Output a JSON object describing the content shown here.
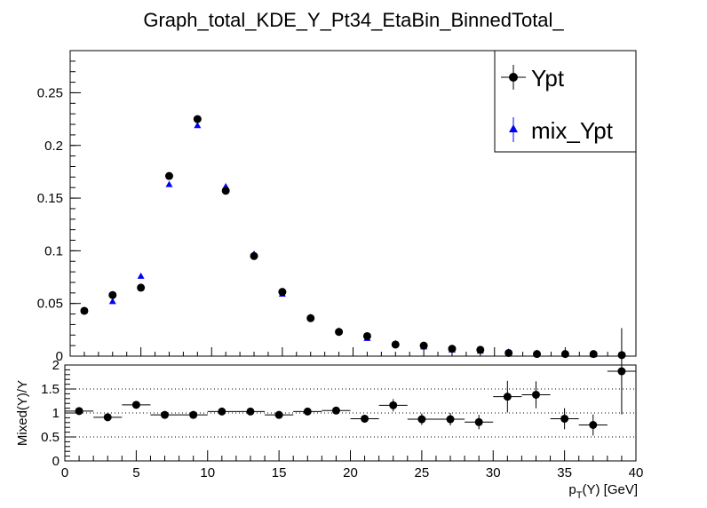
{
  "chart_data": [
    {
      "type": "scatter",
      "panel": "top",
      "title": "Graph_total_KDE_Y_Pt34_EtaBin_BinnedTotal_",
      "xlim": [
        0,
        40
      ],
      "ylim": [
        0,
        0.29
      ],
      "yticks": [
        "0",
        "0.05",
        "0.1",
        "0.15",
        "0.2",
        "0.25"
      ],
      "legend_placement": "top-right",
      "series": [
        {
          "name": "Ypt",
          "marker": "circle",
          "color": "#000000",
          "x": [
            1,
            3,
            5,
            7,
            9,
            11,
            13,
            15,
            17,
            19,
            21,
            23,
            25,
            27,
            29,
            31,
            33,
            35,
            37,
            39
          ],
          "values": [
            0.043,
            0.058,
            0.065,
            0.171,
            0.225,
            0.157,
            0.095,
            0.061,
            0.036,
            0.023,
            0.019,
            0.011,
            0.01,
            0.007,
            0.006,
            0.003,
            0.002,
            0.002,
            0.002,
            0.001
          ]
        },
        {
          "name": "mix_Ypt",
          "marker": "triangle",
          "color": "#0000ff",
          "x": [
            1,
            3,
            5,
            7,
            9,
            11,
            13,
            15,
            17,
            19,
            21,
            23,
            25,
            27,
            29,
            31,
            33,
            35,
            37,
            39
          ],
          "values": [
            0.043,
            0.052,
            0.076,
            0.163,
            0.219,
            0.161,
            0.097,
            0.059,
            0.037,
            0.024,
            0.017,
            0.012,
            0.009,
            0.006,
            0.005,
            0.004,
            0.003,
            0.002,
            0.0015,
            0.002
          ]
        }
      ]
    },
    {
      "type": "scatter",
      "panel": "ratio",
      "xlabel": "p_T(Υ) [GeV]",
      "ylabel": "Mixed(Υ)/Υ",
      "xlim": [
        0,
        40
      ],
      "ylim": [
        0,
        2
      ],
      "xticks": [
        "0",
        "5",
        "10",
        "15",
        "20",
        "25",
        "30",
        "35",
        "40"
      ],
      "yticks": [
        "0",
        "0.5",
        "1",
        "1.5",
        "2"
      ],
      "grid_y": [
        0.5,
        1,
        1.5
      ],
      "series": [
        {
          "name": "",
          "marker": "circle",
          "color": "#000000",
          "x": [
            1,
            3,
            5,
            7,
            9,
            11,
            13,
            15,
            17,
            19,
            21,
            23,
            25,
            27,
            29,
            31,
            33,
            35,
            37,
            39
          ],
          "values": [
            1.04,
            0.91,
            1.17,
            0.96,
            0.96,
            1.03,
            1.03,
            0.96,
            1.03,
            1.05,
            0.88,
            1.16,
            0.87,
            0.87,
            0.81,
            1.34,
            1.38,
            0.88,
            0.75,
            1.87
          ],
          "err": [
            0.04,
            0.04,
            0.04,
            0.03,
            0.03,
            0.03,
            0.04,
            0.04,
            0.05,
            0.06,
            0.07,
            0.13,
            0.12,
            0.13,
            0.15,
            0.33,
            0.28,
            0.22,
            0.22,
            0.9
          ]
        }
      ]
    }
  ]
}
